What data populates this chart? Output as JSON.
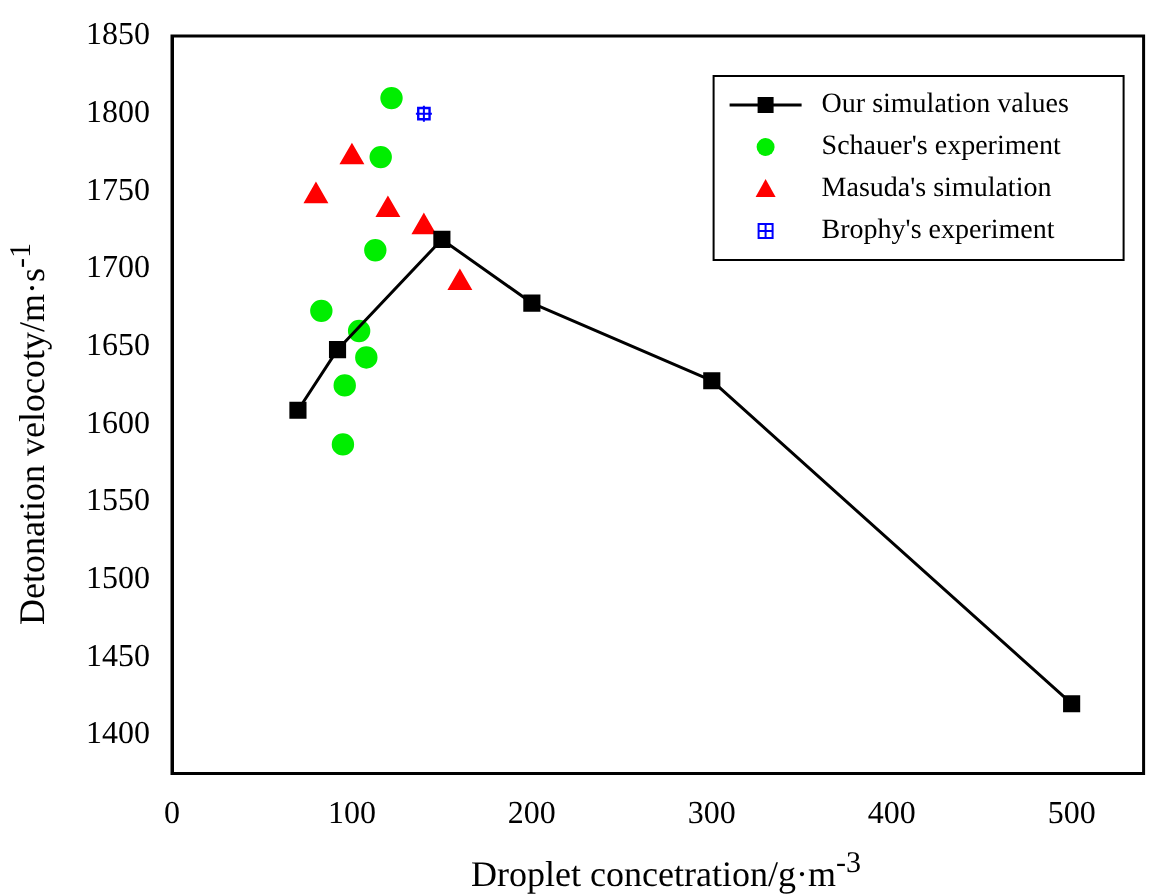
{
  "chart_data": {
    "type": "scatter",
    "xlabel": "Droplet concetration/g·m$^{-3}$",
    "ylabel": "Detonation velocoty/m·s$^{-1}$",
    "xlim": [
      0,
      540
    ],
    "xticks": [
      0,
      100,
      200,
      300,
      400,
      500
    ],
    "ylim": [
      1375,
      1850
    ],
    "yticks": [
      1400,
      1450,
      1500,
      1550,
      1600,
      1650,
      1700,
      1750,
      1800,
      1850
    ],
    "grid": false,
    "legend": "top right",
    "series": [
      {
        "name": "Our simulation values",
        "type": "line",
        "marker": "square",
        "color": "#000000",
        "x": [
          70,
          92,
          150,
          200,
          300,
          500
        ],
        "values": [
          1609,
          1648,
          1719,
          1678,
          1628,
          1420
        ]
      },
      {
        "name": "Schauer's experiment",
        "type": "scatter",
        "marker": "circle",
        "color": "#00ee00",
        "x": [
          122,
          116,
          113,
          83,
          104,
          108,
          96,
          95
        ],
        "values": [
          1810,
          1772,
          1712,
          1673,
          1660,
          1643,
          1625,
          1587
        ]
      },
      {
        "name": "Masuda's simulation",
        "type": "scatter",
        "marker": "triangle",
        "color": "#ff0000",
        "x": [
          80,
          100,
          120,
          140,
          160
        ],
        "values": [
          1747,
          1772,
          1738,
          1727,
          1691
        ]
      },
      {
        "name": "Brophy's experiment",
        "type": "scatter",
        "marker": "cross",
        "color": "#0000ff",
        "x": [
          140
        ],
        "values": [
          1800
        ]
      }
    ]
  }
}
